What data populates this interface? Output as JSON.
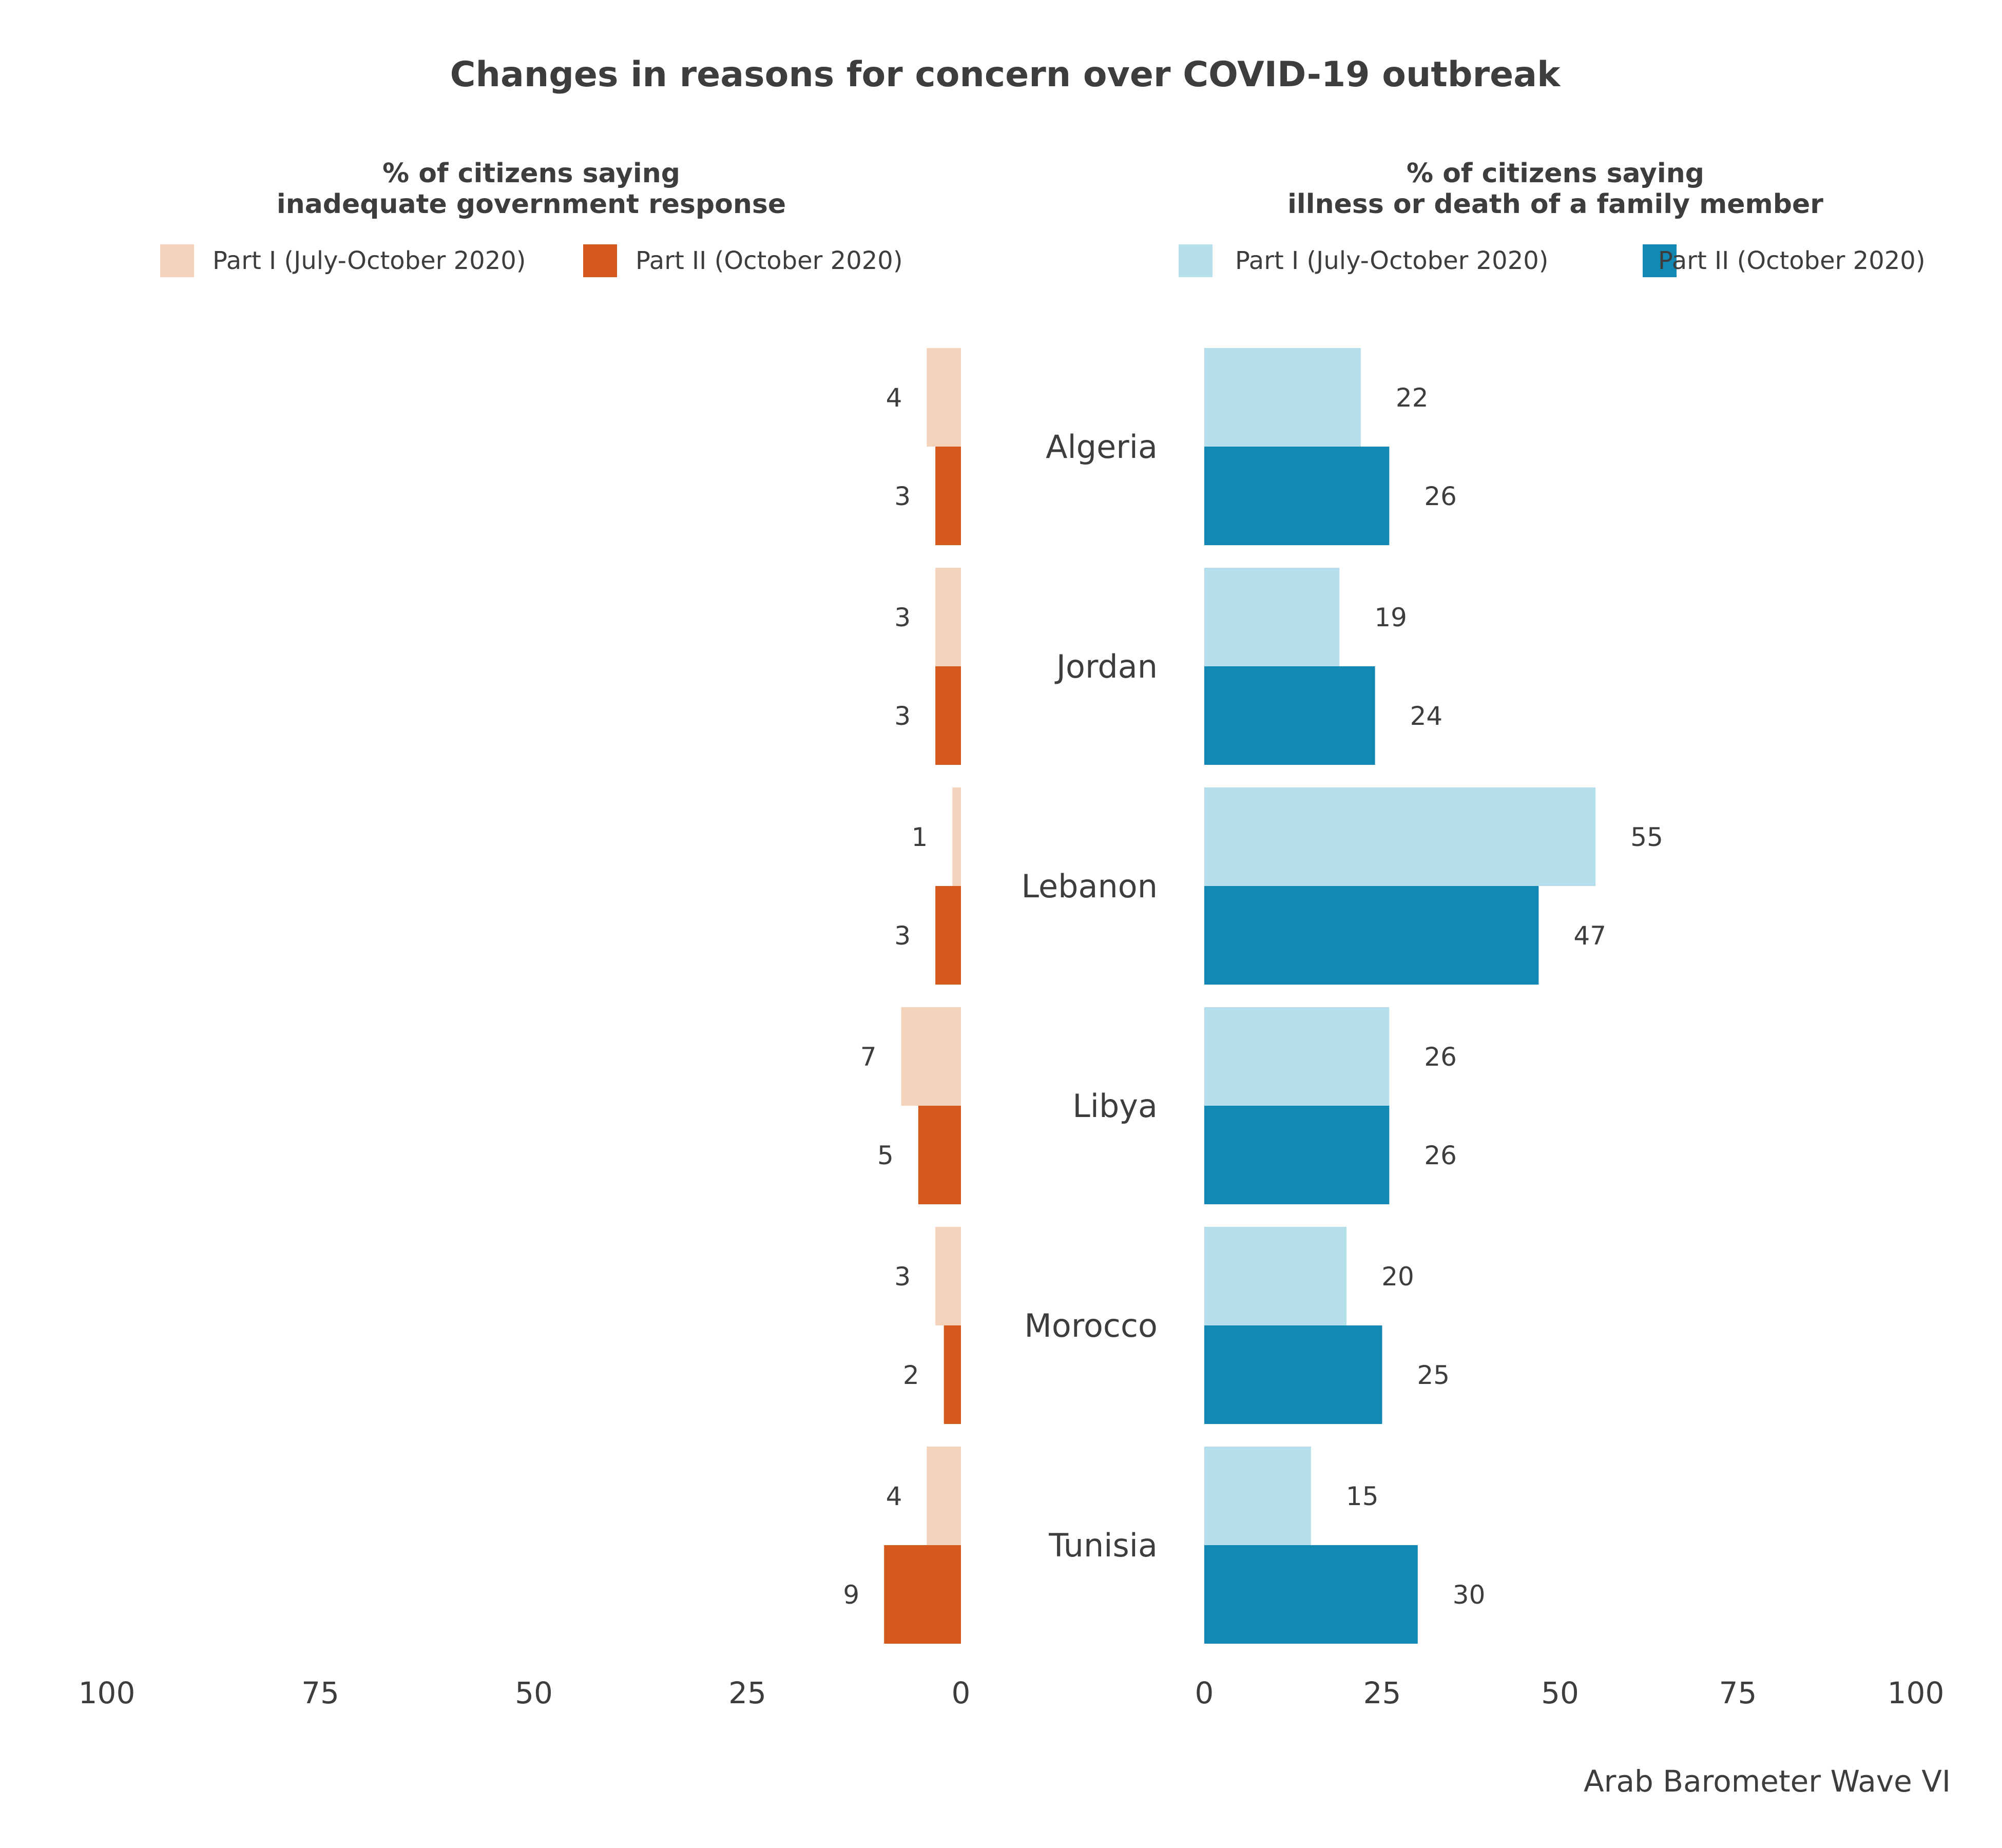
{
  "title": "Changes in reasons for concern over COVID-19 outbreak",
  "caption": "Arab Barometer Wave VI",
  "chart_data": [
    {
      "type": "bar",
      "orientation": "horizontal",
      "direction": "leftward",
      "title": "% of citizens saying\ninadequate government response",
      "title_lines": [
        "% of citizens saying",
        "inadequate government response"
      ],
      "categories": [
        "Algeria",
        "Jordan",
        "Lebanon",
        "Libya",
        "Morocco",
        "Tunisia"
      ],
      "series": [
        {
          "name": "Part I (July-October 2020)",
          "color": "#f3d1bb",
          "values": [
            4,
            3,
            1,
            7,
            3,
            4
          ]
        },
        {
          "name": "Part II (October 2020)",
          "color": "#d5581d",
          "values": [
            3,
            3,
            3,
            5,
            2,
            9
          ]
        }
      ],
      "xlim": [
        0,
        100
      ],
      "ticks": [
        "100",
        "75",
        "50",
        "25",
        "0"
      ],
      "legend": "top",
      "grid": false
    },
    {
      "type": "bar",
      "orientation": "horizontal",
      "direction": "rightward",
      "title": "% of citizens saying\nillness or death of a family member",
      "title_lines": [
        "% of citizens saying",
        "illness or death of a family member"
      ],
      "categories": [
        "Algeria",
        "Jordan",
        "Lebanon",
        "Libya",
        "Morocco",
        "Tunisia"
      ],
      "series": [
        {
          "name": "Part I (July-October 2020)",
          "color": "#b4dfeb",
          "values": [
            22,
            19,
            55,
            26,
            20,
            15
          ]
        },
        {
          "name": "Part II (October 2020)",
          "color": "#1288b3",
          "values": [
            26,
            24,
            47,
            26,
            25,
            30
          ]
        }
      ],
      "xlim": [
        0,
        100
      ],
      "ticks": [
        "0",
        "25",
        "50",
        "75",
        "100"
      ],
      "legend": "top",
      "grid": false
    }
  ]
}
